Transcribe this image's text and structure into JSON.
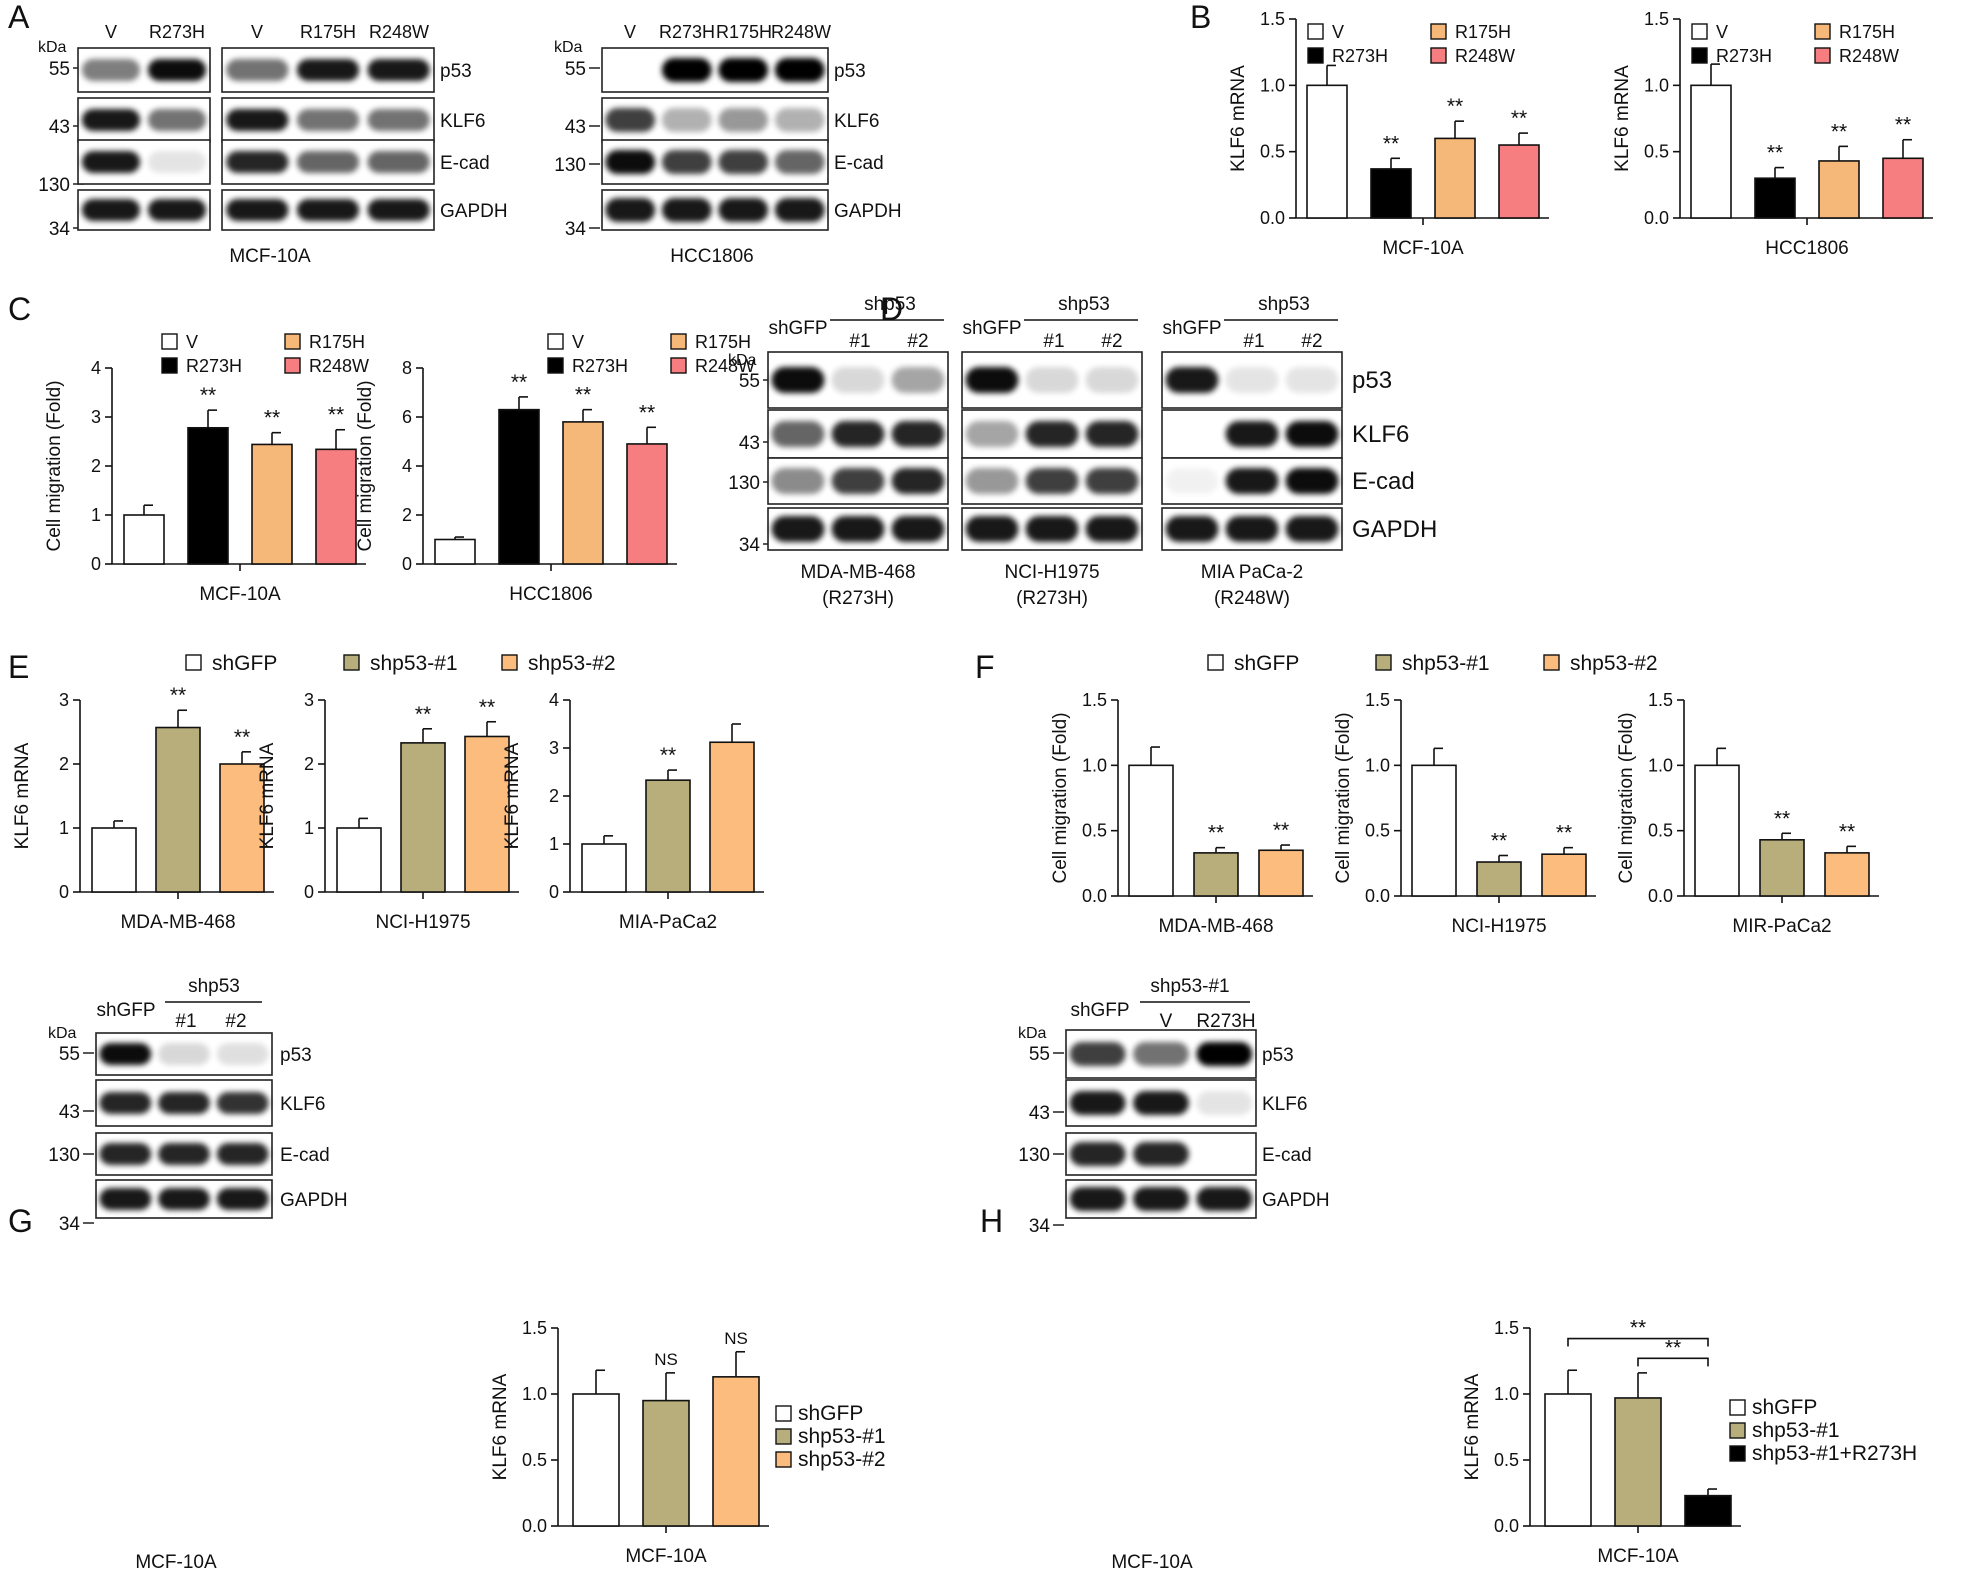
{
  "colors": {
    "white": "#ffffff",
    "black": "#000000",
    "orange": "#f5b878",
    "salmon": "#f67e80",
    "olive": "#b8ae7c",
    "light_orange": "#fbbc7d"
  },
  "panels": {
    "A": {
      "letter": "A",
      "kda": "kDa",
      "lanes_left": [
        "V",
        "R273H"
      ],
      "lanes_right": [
        "V",
        "R175H",
        "R248W"
      ],
      "lanes_hcc": [
        "V",
        "R273H",
        "R175H",
        "R248W"
      ],
      "bands": [
        "p53",
        "KLF6",
        "E-cad",
        "GAPDH"
      ],
      "mw": [
        "55",
        "43",
        "130",
        "34"
      ],
      "cell_left": "MCF-10A",
      "cell_right": "HCC1806"
    },
    "D": {
      "letter": "D",
      "kda": "kDa",
      "ctrl": "shGFP",
      "sh": "shp53",
      "sh_nums": [
        "#1",
        "#2"
      ],
      "bands": [
        "p53",
        "KLF6",
        "E-cad",
        "GAPDH"
      ],
      "mw": [
        "55",
        "43",
        "130",
        "34"
      ],
      "cells": [
        {
          "name": "MDA-MB-468",
          "mut": "(R273H)"
        },
        {
          "name": "NCI-H1975",
          "mut": "(R273H)"
        },
        {
          "name": "MIA PaCa-2",
          "mut": "(R248W)"
        }
      ]
    },
    "G": {
      "letter": "G",
      "kda": "kDa",
      "ctrl": "shGFP",
      "sh": "shp53",
      "sh_nums": [
        "#1",
        "#2"
      ],
      "bands": [
        "p53",
        "KLF6",
        "E-cad",
        "GAPDH"
      ],
      "mw": [
        "55",
        "43",
        "130",
        "34"
      ],
      "cell": "MCF-10A"
    },
    "H": {
      "letter": "H",
      "kda": "kDa",
      "ctrl": "shGFP",
      "sh": "shp53-#1",
      "sub": [
        "V",
        "R273H"
      ],
      "bands": [
        "p53",
        "KLF6",
        "E-cad",
        "GAPDH"
      ],
      "mw": [
        "55",
        "43",
        "130",
        "34"
      ],
      "cell": "MCF-10A"
    }
  },
  "chart_data": [
    {
      "id": "B1",
      "panel": "B",
      "type": "bar",
      "ylabel": "KLF6 mRNA",
      "xlabel": "MCF-10A",
      "ylim": [
        0,
        1.5
      ],
      "yticks": [
        "0.0",
        "0.5",
        "1.0",
        "1.5"
      ],
      "categories": [
        "V",
        "R273H",
        "R175H",
        "R248W"
      ],
      "values": [
        1.0,
        0.37,
        0.6,
        0.55
      ],
      "errors": [
        0.15,
        0.08,
        0.13,
        0.09
      ],
      "sig": [
        "",
        "**",
        "**",
        "**"
      ],
      "legend": [
        "V",
        "R273H",
        "R175H",
        "R248W"
      ]
    },
    {
      "id": "B2",
      "panel": "B",
      "type": "bar",
      "ylabel": "KLF6 mRNA",
      "xlabel": "HCC1806",
      "ylim": [
        0,
        1.5
      ],
      "yticks": [
        "0.0",
        "0.5",
        "1.0",
        "1.5"
      ],
      "categories": [
        "V",
        "R273H",
        "R175H",
        "R248W"
      ],
      "values": [
        1.0,
        0.3,
        0.43,
        0.45
      ],
      "errors": [
        0.16,
        0.08,
        0.11,
        0.14
      ],
      "sig": [
        "",
        "**",
        "**",
        "**"
      ],
      "legend": [
        "V",
        "R273H",
        "R175H",
        "R248W"
      ]
    },
    {
      "id": "C1",
      "panel": "C",
      "type": "bar",
      "ylabel": "Cell migration (Fold)",
      "xlabel": "MCF-10A",
      "ylim": [
        0,
        4
      ],
      "yticks": [
        "0",
        "1",
        "2",
        "3",
        "4"
      ],
      "categories": [
        "V",
        "R273H",
        "R175H",
        "R248W"
      ],
      "values": [
        1.0,
        2.78,
        2.44,
        2.34
      ],
      "errors": [
        0.2,
        0.36,
        0.24,
        0.4
      ],
      "sig": [
        "",
        "**",
        "**",
        "**"
      ],
      "legend": [
        "V",
        "R273H",
        "R175H",
        "R248W"
      ]
    },
    {
      "id": "C2",
      "panel": "C",
      "type": "bar",
      "ylabel": "Cell migration (Fold)",
      "xlabel": "HCC1806",
      "ylim": [
        0,
        8
      ],
      "yticks": [
        "0",
        "2",
        "4",
        "6",
        "8"
      ],
      "categories": [
        "V",
        "R273H",
        "R175H",
        "R248W"
      ],
      "values": [
        1.0,
        6.3,
        5.8,
        4.9
      ],
      "errors": [
        0.1,
        0.52,
        0.5,
        0.68
      ],
      "sig": [
        "",
        "**",
        "**",
        "**"
      ],
      "legend": [
        "V",
        "R273H",
        "R175H",
        "R248W"
      ]
    },
    {
      "id": "E1",
      "panel": "E",
      "type": "bar",
      "ylabel": "KLF6 mRNA",
      "xlabel": "MDA-MB-468",
      "ylim": [
        0,
        3
      ],
      "yticks": [
        "0",
        "1",
        "2",
        "3"
      ],
      "categories": [
        "shGFP",
        "shp53-#1",
        "shp53-#2"
      ],
      "values": [
        1.0,
        2.57,
        2.0
      ],
      "errors": [
        0.11,
        0.27,
        0.19
      ],
      "sig": [
        "",
        "**",
        "**"
      ]
    },
    {
      "id": "E2",
      "panel": "E",
      "type": "bar",
      "ylabel": "KLF6 mRNA",
      "xlabel": "NCI-H1975",
      "ylim": [
        0,
        3
      ],
      "yticks": [
        "0",
        "1",
        "2",
        "3"
      ],
      "categories": [
        "shGFP",
        "shp53-#1",
        "shp53-#2"
      ],
      "values": [
        1.0,
        2.33,
        2.43
      ],
      "errors": [
        0.15,
        0.22,
        0.23
      ],
      "sig": [
        "",
        "**",
        "**"
      ]
    },
    {
      "id": "E3",
      "panel": "E",
      "type": "bar",
      "ylabel": "KLF6 mRNA",
      "xlabel": "MIA-PaCa2",
      "ylim": [
        0,
        4
      ],
      "yticks": [
        "0",
        "1",
        "2",
        "3",
        "4"
      ],
      "categories": [
        "shGFP",
        "shp53-#1",
        "shp53-#2"
      ],
      "values": [
        1.0,
        2.33,
        3.12
      ],
      "errors": [
        0.17,
        0.21,
        0.38
      ],
      "sig": [
        "",
        "**",
        ""
      ]
    },
    {
      "id": "F1",
      "panel": "F",
      "type": "bar",
      "ylabel": "Cell migration (Fold)",
      "xlabel": "MDA-MB-468",
      "ylim": [
        0,
        1.5
      ],
      "yticks": [
        "0.0",
        "0.5",
        "1.0",
        "1.5"
      ],
      "categories": [
        "shGFP",
        "shp53-#1",
        "shp53-#2"
      ],
      "values": [
        1.0,
        0.33,
        0.35
      ],
      "errors": [
        0.14,
        0.04,
        0.04
      ],
      "sig": [
        "",
        "**",
        "**"
      ]
    },
    {
      "id": "F2",
      "panel": "F",
      "type": "bar",
      "ylabel": "Cell migration (Fold)",
      "xlabel": "NCI-H1975",
      "ylim": [
        0,
        1.5
      ],
      "yticks": [
        "0.0",
        "0.5",
        "1.0",
        "1.5"
      ],
      "categories": [
        "shGFP",
        "shp53-#1",
        "shp53-#2"
      ],
      "values": [
        1.0,
        0.26,
        0.32
      ],
      "errors": [
        0.13,
        0.05,
        0.05
      ],
      "sig": [
        "",
        "**",
        "**"
      ]
    },
    {
      "id": "F3",
      "panel": "F",
      "type": "bar",
      "ylabel": "Cell migration (Fold)",
      "xlabel": "MIR-PaCa2",
      "ylim": [
        0,
        1.5
      ],
      "yticks": [
        "0.0",
        "0.5",
        "1.0",
        "1.5"
      ],
      "categories": [
        "shGFP",
        "shp53-#1",
        "shp53-#2"
      ],
      "values": [
        1.0,
        0.43,
        0.33
      ],
      "errors": [
        0.13,
        0.05,
        0.05
      ],
      "sig": [
        "",
        "**",
        "**"
      ]
    },
    {
      "id": "G1",
      "panel": "G",
      "type": "bar",
      "ylabel": "KLF6 mRNA",
      "xlabel": "MCF-10A",
      "ylim": [
        0,
        1.5
      ],
      "yticks": [
        "0.0",
        "0.5",
        "1.0",
        "1.5"
      ],
      "categories": [
        "shGFP",
        "shp53-#1",
        "shp53-#2"
      ],
      "values": [
        1.0,
        0.95,
        1.13
      ],
      "errors": [
        0.18,
        0.21,
        0.19
      ],
      "sig": [
        "",
        "NS",
        "NS"
      ],
      "legend": [
        "shGFP",
        "shp53-#1",
        "shp53-#2"
      ]
    },
    {
      "id": "H1",
      "panel": "H",
      "type": "bar",
      "ylabel": "KLF6 mRNA",
      "xlabel": "MCF-10A",
      "ylim": [
        0,
        1.5
      ],
      "yticks": [
        "0.0",
        "0.5",
        "1.0",
        "1.5"
      ],
      "categories": [
        "shGFP",
        "shp53-#1",
        "shp53-#1+R273H"
      ],
      "values": [
        1.0,
        0.97,
        0.23
      ],
      "errors": [
        0.18,
        0.19,
        0.05
      ],
      "sig": [
        "",
        "",
        ""
      ],
      "brackets": [
        "**",
        "**"
      ],
      "legend": [
        "shGFP",
        "shp53-#1",
        "shp53-#1+R273H"
      ]
    }
  ],
  "legends": {
    "BC": [
      "V",
      "R273H",
      "R175H",
      "R248W"
    ],
    "EF": [
      "shGFP",
      "shp53-#1",
      "shp53-#2"
    ]
  },
  "letters": {
    "B": "B",
    "C": "C",
    "E": "E",
    "F": "F"
  }
}
